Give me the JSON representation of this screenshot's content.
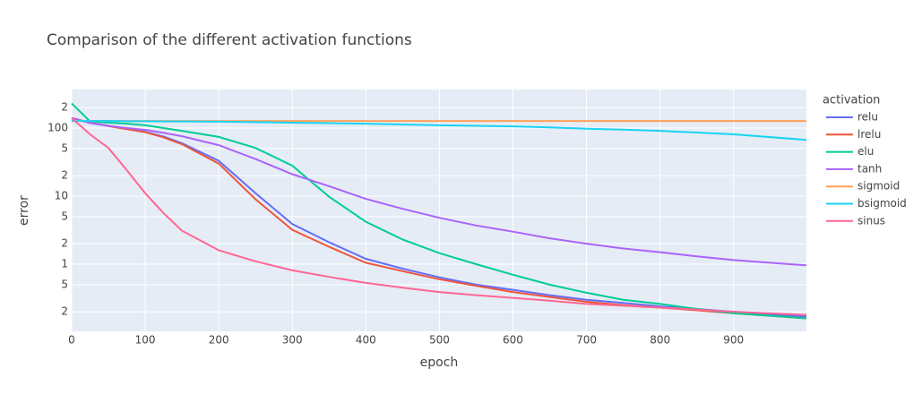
{
  "chart_data": {
    "type": "line",
    "title": "Comparison of the different activation functions",
    "x_label": "epoch",
    "y_label": "error",
    "legend_title": "activation",
    "log_y": true,
    "grid": true,
    "x": [
      0,
      25,
      50,
      75,
      100,
      125,
      150,
      200,
      250,
      300,
      350,
      400,
      450,
      500,
      550,
      600,
      650,
      700,
      750,
      800,
      850,
      900,
      999
    ],
    "xlim": [
      0,
      999
    ],
    "xticks": [
      0,
      100,
      200,
      300,
      400,
      500,
      600,
      700,
      800,
      900
    ],
    "ylim": [
      0.103,
      368
    ],
    "yticks": [
      {
        "value": 200,
        "label": "2"
      },
      100,
      {
        "value": 50,
        "label": "5"
      },
      {
        "value": 20,
        "label": "2"
      },
      10,
      5,
      2,
      1,
      {
        "value": 0.5,
        "label": "5"
      },
      {
        "value": 0.2,
        "label": "2"
      }
    ],
    "series": [
      {
        "name": "relu",
        "color": "#636efa",
        "values": [
          140,
          120,
          108,
          97,
          88,
          75,
          60,
          33,
          11,
          3.9,
          2.1,
          1.2,
          0.86,
          0.64,
          0.5,
          0.42,
          0.35,
          0.3,
          0.27,
          0.24,
          0.22,
          0.2,
          0.17
        ]
      },
      {
        "name": "lrelu",
        "color": "#ef553b",
        "values": [
          140,
          120,
          107,
          96,
          87,
          73,
          58,
          30,
          9,
          3.2,
          1.8,
          1.05,
          0.79,
          0.6,
          0.48,
          0.39,
          0.33,
          0.28,
          0.25,
          0.23,
          0.21,
          0.19,
          0.16
        ]
      },
      {
        "name": "elu",
        "color": "#00cc96",
        "values": [
          230,
          125,
          120,
          116,
          110,
          100,
          91,
          74,
          51,
          28,
          9.8,
          4.2,
          2.3,
          1.45,
          1.0,
          0.7,
          0.5,
          0.38,
          0.3,
          0.26,
          0.22,
          0.19,
          0.16
        ]
      },
      {
        "name": "tanh",
        "color": "#ab63fa",
        "values": [
          140,
          118,
          108,
          100,
          94,
          85,
          76,
          56,
          35,
          21,
          14,
          9.1,
          6.5,
          4.8,
          3.7,
          3.0,
          2.4,
          2.0,
          1.7,
          1.5,
          1.3,
          1.15,
          0.96
        ]
      },
      {
        "name": "sigmoid",
        "color": "#ffa15a",
        "values": [
          127,
          127,
          127,
          127,
          127,
          127,
          127,
          127,
          127,
          127,
          127,
          127,
          127,
          127,
          127,
          127,
          127,
          127,
          127,
          127,
          127,
          127,
          127
        ]
      },
      {
        "name": "bsigmoid",
        "color": "#19d3f3",
        "values": [
          127,
          127,
          127,
          126,
          126,
          125,
          125,
          124,
          122,
          120,
          118,
          116,
          113,
          110,
          108,
          106,
          102,
          98,
          95,
          91,
          86,
          81,
          67
        ]
      },
      {
        "name": "sinus",
        "color": "#ff6692",
        "values": [
          140,
          81,
          51,
          24,
          11,
          5.6,
          3.1,
          1.6,
          1.1,
          0.81,
          0.65,
          0.53,
          0.45,
          0.39,
          0.35,
          0.32,
          0.29,
          0.26,
          0.245,
          0.23,
          0.215,
          0.2,
          0.18
        ]
      }
    ]
  }
}
